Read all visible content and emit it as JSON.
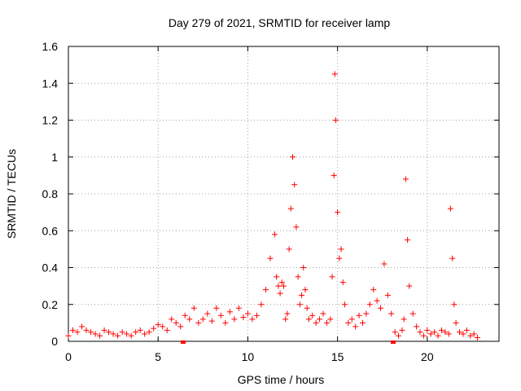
{
  "chart_data": {
    "type": "scatter",
    "title": "Day 279 of 2021, SRMTID for receiver lamp",
    "xlabel": "GPS time / hours",
    "ylabel": "SRMTID / TECUs",
    "xlim": [
      0,
      24
    ],
    "ylim": [
      0,
      1.6
    ],
    "xticks": [
      0,
      5,
      10,
      15,
      20
    ],
    "yticks": [
      0,
      0.2,
      0.4,
      0.6,
      0.8,
      1,
      1.2,
      1.4,
      1.6
    ],
    "xtick_labels": [
      "0",
      "5",
      "10",
      "15",
      "20"
    ],
    "ytick_labels": [
      "0",
      "0.2",
      "0.4",
      "0.6",
      "0.8",
      "1",
      "1.2",
      "1.4",
      "1.6"
    ],
    "grid": true,
    "marker": "+",
    "color": "#ff0000",
    "envelope_description": "Sampled series of SRMTID values (TECU) vs GPS hours; dense noise plus peaks",
    "series": [
      {
        "name": "SRMTID",
        "x": [
          0.0,
          0.25,
          0.5,
          0.75,
          1.0,
          1.25,
          1.5,
          1.75,
          2.0,
          2.25,
          2.5,
          2.75,
          3.0,
          3.25,
          3.5,
          3.75,
          4.0,
          4.25,
          4.5,
          4.75,
          5.0,
          5.25,
          5.5,
          5.75,
          6.0,
          6.25,
          6.5,
          6.75,
          7.0,
          7.25,
          7.5,
          7.75,
          8.0,
          8.25,
          8.5,
          8.75,
          9.0,
          9.25,
          9.5,
          9.75,
          10.0,
          10.25,
          10.5,
          10.75,
          11.0,
          11.25,
          11.5,
          11.6,
          11.7,
          11.8,
          11.9,
          12.0,
          12.1,
          12.2,
          12.3,
          12.4,
          12.5,
          12.6,
          12.7,
          12.8,
          12.9,
          13.0,
          13.1,
          13.2,
          13.3,
          13.4,
          13.6,
          13.8,
          14.0,
          14.2,
          14.4,
          14.6,
          14.7,
          14.8,
          14.85,
          14.9,
          15.0,
          15.1,
          15.2,
          15.3,
          15.4,
          15.6,
          15.8,
          16.0,
          16.2,
          16.4,
          16.6,
          16.8,
          17.0,
          17.2,
          17.4,
          17.6,
          17.8,
          18.0,
          18.2,
          18.4,
          18.6,
          18.7,
          18.8,
          18.9,
          19.0,
          19.2,
          19.4,
          19.6,
          19.8,
          20.0,
          20.2,
          20.4,
          20.6,
          20.8,
          21.0,
          21.2,
          21.3,
          21.4,
          21.5,
          21.6,
          21.8,
          22.0,
          22.2,
          22.4,
          22.6,
          22.8
        ],
        "y": [
          0.03,
          0.06,
          0.05,
          0.08,
          0.06,
          0.05,
          0.04,
          0.03,
          0.06,
          0.05,
          0.04,
          0.03,
          0.05,
          0.04,
          0.03,
          0.05,
          0.06,
          0.04,
          0.05,
          0.07,
          0.09,
          0.08,
          0.06,
          0.12,
          0.1,
          0.08,
          0.14,
          0.12,
          0.18,
          0.1,
          0.12,
          0.15,
          0.11,
          0.18,
          0.14,
          0.1,
          0.16,
          0.12,
          0.18,
          0.13,
          0.15,
          0.12,
          0.14,
          0.2,
          0.28,
          0.45,
          0.58,
          0.35,
          0.3,
          0.26,
          0.32,
          0.3,
          0.12,
          0.15,
          0.5,
          0.72,
          1.0,
          0.85,
          0.62,
          0.35,
          0.2,
          0.25,
          0.4,
          0.28,
          0.18,
          0.12,
          0.14,
          0.1,
          0.12,
          0.15,
          0.1,
          0.12,
          0.35,
          0.9,
          1.45,
          1.2,
          0.7,
          0.45,
          0.5,
          0.32,
          0.2,
          0.1,
          0.12,
          0.08,
          0.14,
          0.1,
          0.15,
          0.2,
          0.28,
          0.22,
          0.18,
          0.42,
          0.25,
          0.15,
          0.05,
          0.03,
          0.06,
          0.12,
          0.88,
          0.55,
          0.3,
          0.15,
          0.08,
          0.05,
          0.03,
          0.06,
          0.04,
          0.05,
          0.03,
          0.06,
          0.05,
          0.04,
          0.72,
          0.45,
          0.2,
          0.1,
          0.05,
          0.04,
          0.06,
          0.03,
          0.04,
          0.02
        ]
      }
    ],
    "gaps_marked_at_zero": [
      6.4,
      18.1
    ]
  }
}
